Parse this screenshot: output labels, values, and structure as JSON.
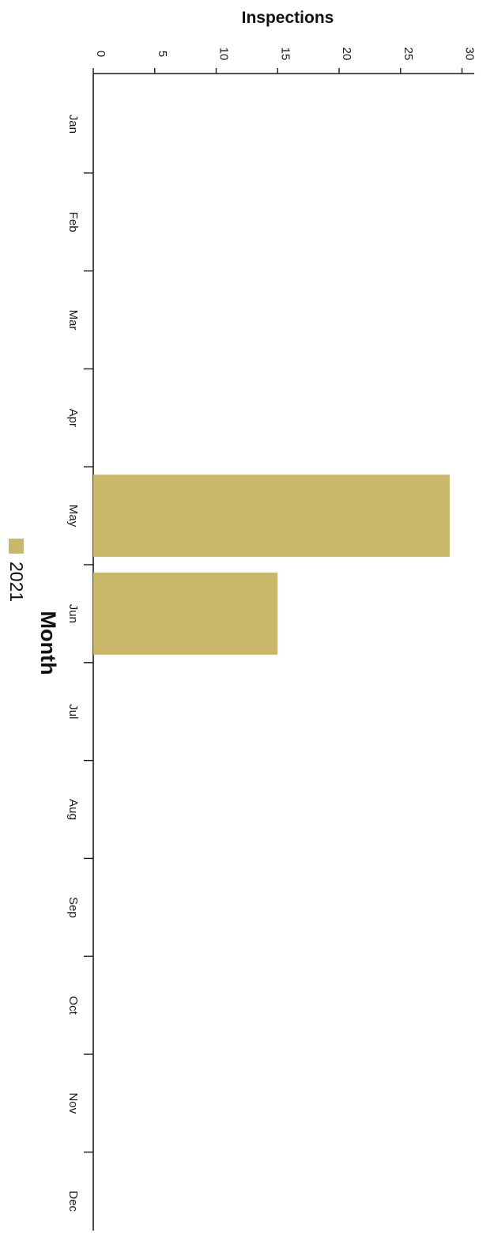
{
  "chart_data": {
    "type": "bar",
    "orientation": "horizontal",
    "categories": [
      "Jan",
      "Feb",
      "Mar",
      "Apr",
      "May",
      "Jun",
      "Jul",
      "Aug",
      "Sep",
      "Oct",
      "Nov",
      "Dec"
    ],
    "series": [
      {
        "name": "2021",
        "color": "#c9b86a",
        "values": [
          0,
          0,
          0,
          0,
          29,
          15,
          0,
          0,
          0,
          0,
          0,
          0
        ]
      }
    ],
    "ylabel": "Inspections",
    "xlabel": "Month",
    "ylim": [
      0,
      31
    ],
    "yticks": [
      0,
      5,
      10,
      15,
      20,
      25,
      30
    ],
    "ytick_labels": [
      "0",
      "5",
      "10",
      "15",
      "20",
      "25",
      "30"
    ],
    "legend": {
      "placement": "bottom-left",
      "entries": [
        "2021"
      ]
    },
    "grid": false
  }
}
